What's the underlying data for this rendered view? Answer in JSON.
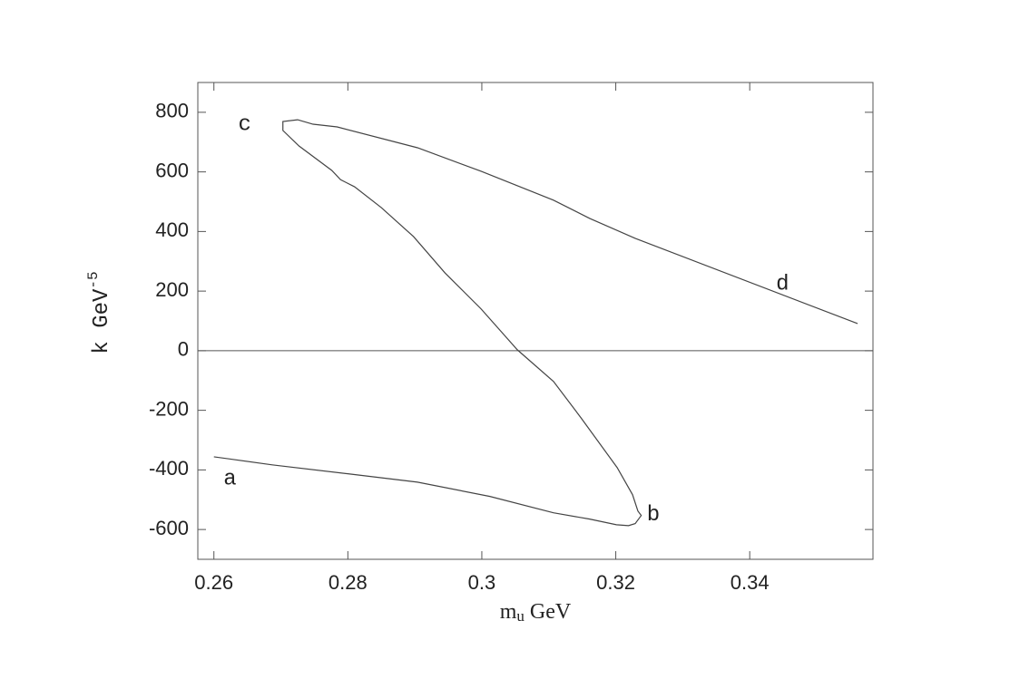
{
  "chart_data": {
    "type": "line",
    "x_label": [
      "m",
      "u",
      " GeV"
    ],
    "y_label": [
      "k  GeV",
      "-5"
    ],
    "xlim": [
      0.2576,
      0.3584
    ],
    "ylim": [
      -700,
      900
    ],
    "xticks": [
      0.26,
      0.28,
      0.3,
      0.32,
      0.34
    ],
    "yticks": [
      -600,
      -400,
      -200,
      0,
      200,
      400,
      600,
      800
    ],
    "hlines": [
      0
    ],
    "series": [
      {
        "color": "#444444",
        "x": [
          0.26,
          0.2687,
          0.28,
          0.2904,
          0.3012,
          0.3107,
          0.3161,
          0.3201,
          0.3219,
          0.3229,
          0.3238,
          0.3233,
          0.3225,
          0.3202,
          0.3148,
          0.3107,
          0.3053,
          0.2999,
          0.2945,
          0.2898,
          0.285,
          0.281,
          0.2789,
          0.2776,
          0.2727,
          0.2703,
          0.2703,
          0.2725,
          0.2748,
          0.2784,
          0.2904,
          0.2999,
          0.3107,
          0.3161,
          0.3229,
          0.3561
        ],
        "values": [
          -356,
          -383,
          -413,
          -441,
          -489,
          -544,
          -565,
          -584,
          -587,
          -580,
          -553,
          -538,
          -483,
          -392,
          -225,
          -103,
          3,
          140,
          261,
          383,
          480,
          550,
          574,
          605,
          687,
          739,
          769,
          775,
          760,
          751,
          681,
          602,
          505,
          444,
          377,
          91
        ]
      }
    ],
    "annotations": [
      {
        "text": "a",
        "x": 0.2624,
        "y": -429
      },
      {
        "text": "b",
        "x": 0.3256,
        "y": -550
      },
      {
        "text": "c",
        "x": 0.2646,
        "y": 760
      },
      {
        "text": "d",
        "x": 0.3449,
        "y": 225
      }
    ]
  }
}
